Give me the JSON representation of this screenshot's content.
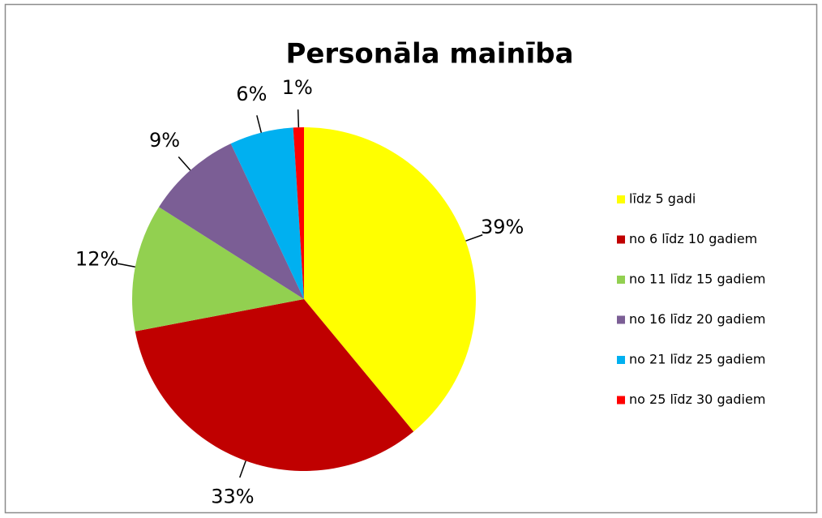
{
  "chart_data": {
    "type": "pie",
    "title": "Personāla mainība",
    "categories": [
      "līdz 5 gadi",
      "no 6 līdz 10 gadiem",
      "no 11 līdz 15 gadiem",
      "no 16 līdz 20 gadiem",
      "no 21 līdz 25 gadiem",
      "no 25 līdz 30 gadiem"
    ],
    "values": [
      39,
      33,
      12,
      9,
      6,
      1
    ],
    "value_labels": [
      "39%",
      "33%",
      "12%",
      "9%",
      "6%",
      "1%"
    ],
    "colors": [
      "#FFFF00",
      "#C00000",
      "#92D050",
      "#7B5E95",
      "#00B0F0",
      "#FF0000"
    ],
    "legend": "right"
  }
}
